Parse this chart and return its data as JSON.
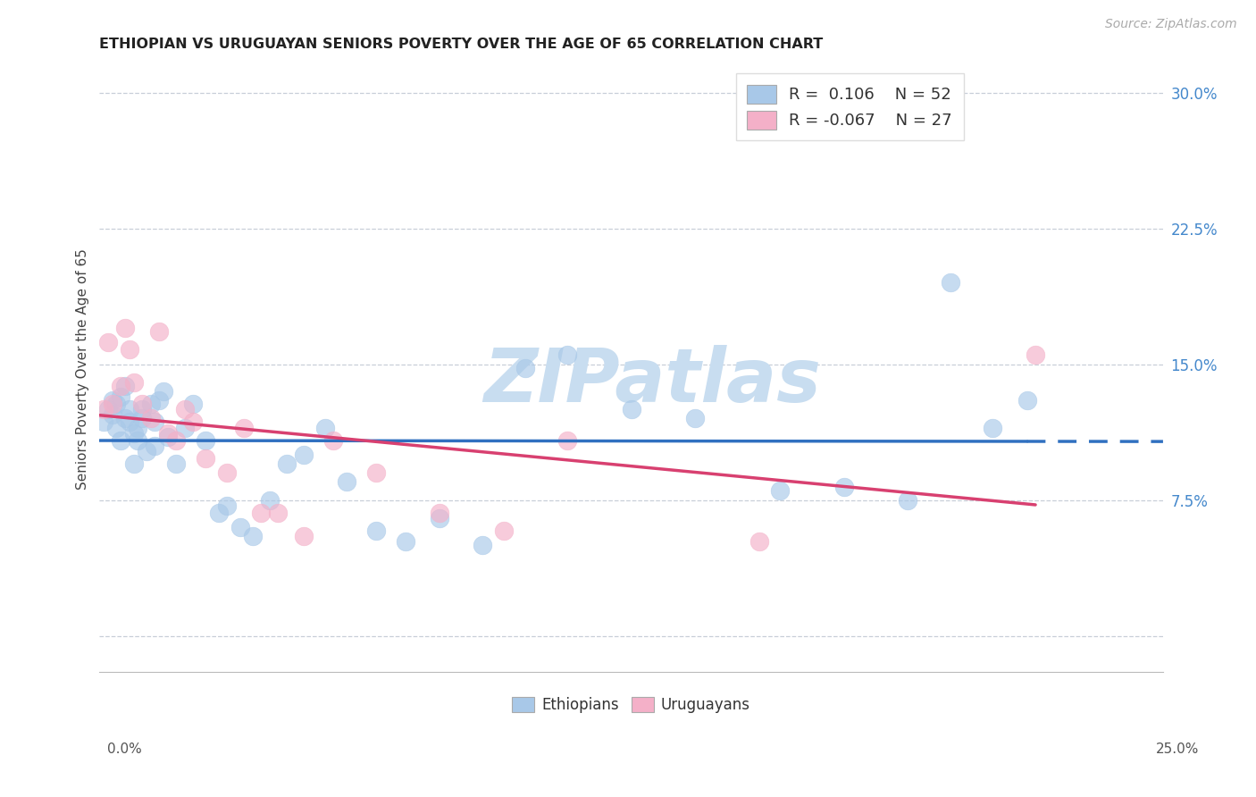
{
  "title": "ETHIOPIAN VS URUGUAYAN SENIORS POVERTY OVER THE AGE OF 65 CORRELATION CHART",
  "source": "Source: ZipAtlas.com",
  "ylabel": "Seniors Poverty Over the Age of 65",
  "x_tick_labels_outer": [
    "0.0%",
    "25.0%"
  ],
  "y_ticks": [
    0.0,
    0.075,
    0.15,
    0.225,
    0.3
  ],
  "y_tick_labels": [
    "",
    "7.5%",
    "15.0%",
    "22.5%",
    "30.0%"
  ],
  "xlim": [
    0.0,
    0.25
  ],
  "ylim": [
    -0.02,
    0.315
  ],
  "blue_color": "#a8c8e8",
  "pink_color": "#f4b0c8",
  "trend_blue": "#3070c0",
  "trend_pink": "#d84070",
  "background": "#ffffff",
  "grid_color": "#c8cfd8",
  "watermark_color": "#c8ddf0",
  "ethiopians_x": [
    0.001,
    0.002,
    0.003,
    0.003,
    0.004,
    0.004,
    0.005,
    0.005,
    0.006,
    0.006,
    0.007,
    0.007,
    0.008,
    0.008,
    0.009,
    0.009,
    0.01,
    0.01,
    0.011,
    0.012,
    0.013,
    0.013,
    0.014,
    0.015,
    0.016,
    0.018,
    0.02,
    0.022,
    0.025,
    0.028,
    0.03,
    0.033,
    0.036,
    0.04,
    0.044,
    0.048,
    0.053,
    0.058,
    0.065,
    0.072,
    0.08,
    0.09,
    0.1,
    0.11,
    0.125,
    0.14,
    0.16,
    0.175,
    0.19,
    0.2,
    0.21,
    0.218
  ],
  "ethiopians_y": [
    0.118,
    0.125,
    0.13,
    0.122,
    0.128,
    0.115,
    0.132,
    0.108,
    0.138,
    0.12,
    0.118,
    0.125,
    0.112,
    0.095,
    0.108,
    0.115,
    0.12,
    0.125,
    0.102,
    0.128,
    0.118,
    0.105,
    0.13,
    0.135,
    0.11,
    0.095,
    0.115,
    0.128,
    0.108,
    0.068,
    0.072,
    0.06,
    0.055,
    0.075,
    0.095,
    0.1,
    0.115,
    0.085,
    0.058,
    0.052,
    0.065,
    0.05,
    0.148,
    0.155,
    0.125,
    0.12,
    0.08,
    0.082,
    0.075,
    0.195,
    0.115,
    0.13
  ],
  "uruguayans_x": [
    0.001,
    0.002,
    0.003,
    0.005,
    0.006,
    0.007,
    0.008,
    0.01,
    0.012,
    0.014,
    0.016,
    0.018,
    0.02,
    0.022,
    0.025,
    0.03,
    0.034,
    0.038,
    0.042,
    0.048,
    0.055,
    0.065,
    0.08,
    0.095,
    0.11,
    0.155,
    0.22
  ],
  "uruguayans_y": [
    0.125,
    0.162,
    0.128,
    0.138,
    0.17,
    0.158,
    0.14,
    0.128,
    0.12,
    0.168,
    0.112,
    0.108,
    0.125,
    0.118,
    0.098,
    0.09,
    0.115,
    0.068,
    0.068,
    0.055,
    0.108,
    0.09,
    0.068,
    0.058,
    0.108,
    0.052,
    0.155
  ]
}
